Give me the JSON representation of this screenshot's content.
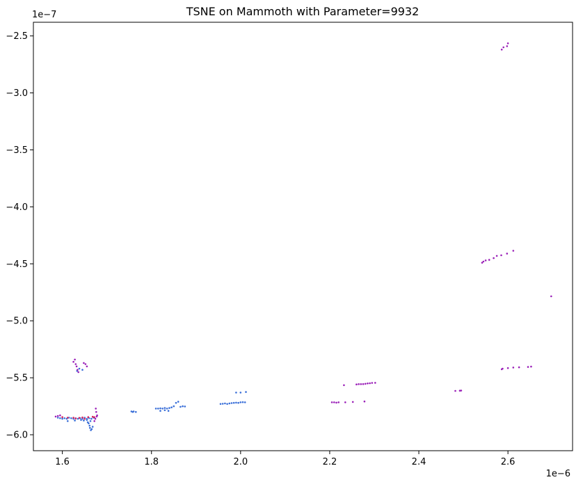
{
  "chart_data": {
    "type": "scatter",
    "title": "TSNE on Mammoth with Parameter=9932",
    "xlabel": "",
    "ylabel": "",
    "x_offset_label": "1e−6",
    "y_offset_label": "1e−7",
    "xlim": [
      1.535,
      2.745
    ],
    "ylim": [
      -6.14,
      -2.38
    ],
    "xticks": [
      1.6,
      1.8,
      2.0,
      2.2,
      2.4,
      2.6
    ],
    "xtick_labels": [
      "1.6",
      "1.8",
      "2.0",
      "2.2",
      "2.4",
      "2.6"
    ],
    "yticks": [
      -2.5,
      -3.0,
      -3.5,
      -4.0,
      -4.5,
      -5.0,
      -5.5,
      -6.0
    ],
    "ytick_labels": [
      "−2.5",
      "−3.0",
      "−3.5",
      "−4.0",
      "−4.5",
      "−5.0",
      "−5.5",
      "−6.0"
    ],
    "grid": false,
    "colors": {
      "blue": "#3a6fd8",
      "purple": "#9a1fb8",
      "red": "#d8205a"
    },
    "series": [
      {
        "color": "blue",
        "points": [
          [
            1.59,
            -5.85
          ],
          [
            1.595,
            -5.855
          ],
          [
            1.6,
            -5.86
          ],
          [
            1.605,
            -5.855
          ],
          [
            1.61,
            -5.86
          ],
          [
            1.615,
            -5.85
          ],
          [
            1.62,
            -5.855
          ],
          [
            1.625,
            -5.86
          ],
          [
            1.63,
            -5.855
          ],
          [
            1.635,
            -5.86
          ],
          [
            1.64,
            -5.855
          ],
          [
            1.645,
            -5.86
          ],
          [
            1.65,
            -5.85
          ],
          [
            1.655,
            -5.86
          ],
          [
            1.66,
            -5.855
          ],
          [
            1.665,
            -5.86
          ],
          [
            1.67,
            -5.85
          ],
          [
            1.612,
            -5.88
          ],
          [
            1.628,
            -5.875
          ],
          [
            1.642,
            -5.87
          ],
          [
            1.648,
            -5.875
          ],
          [
            1.655,
            -5.87
          ],
          [
            1.657,
            -5.89
          ],
          [
            1.659,
            -5.9
          ],
          [
            1.661,
            -5.92
          ],
          [
            1.662,
            -5.94
          ],
          [
            1.664,
            -5.96
          ],
          [
            1.666,
            -5.95
          ],
          [
            1.668,
            -5.93
          ],
          [
            1.663,
            -5.88
          ],
          [
            1.633,
            -5.44
          ],
          [
            1.645,
            -5.43
          ],
          [
            1.638,
            -5.42
          ],
          [
            1.755,
            -5.795
          ],
          [
            1.76,
            -5.795
          ],
          [
            1.765,
            -5.8
          ],
          [
            1.758,
            -5.8
          ],
          [
            1.81,
            -5.77
          ],
          [
            1.815,
            -5.77
          ],
          [
            1.82,
            -5.768
          ],
          [
            1.825,
            -5.77
          ],
          [
            1.83,
            -5.765
          ],
          [
            1.835,
            -5.77
          ],
          [
            1.84,
            -5.765
          ],
          [
            1.845,
            -5.76
          ],
          [
            1.82,
            -5.79
          ],
          [
            1.83,
            -5.785
          ],
          [
            1.838,
            -5.79
          ],
          [
            1.85,
            -5.75
          ],
          [
            1.855,
            -5.72
          ],
          [
            1.86,
            -5.71
          ],
          [
            1.865,
            -5.755
          ],
          [
            1.87,
            -5.75
          ],
          [
            1.875,
            -5.752
          ],
          [
            1.955,
            -5.73
          ],
          [
            1.96,
            -5.728
          ],
          [
            1.965,
            -5.725
          ],
          [
            1.97,
            -5.73
          ],
          [
            1.975,
            -5.725
          ],
          [
            1.98,
            -5.722
          ],
          [
            1.985,
            -5.72
          ],
          [
            1.99,
            -5.718
          ],
          [
            1.995,
            -5.72
          ],
          [
            2.0,
            -5.715
          ],
          [
            2.005,
            -5.714
          ],
          [
            2.01,
            -5.715
          ],
          [
            1.99,
            -5.63
          ],
          [
            2.0,
            -5.63
          ],
          [
            2.012,
            -5.625
          ]
        ]
      },
      {
        "color": "purple",
        "points": [
          [
            1.585,
            -5.84
          ],
          [
            1.59,
            -5.835
          ],
          [
            1.595,
            -5.83
          ],
          [
            1.675,
            -5.77
          ],
          [
            1.676,
            -5.8
          ],
          [
            1.678,
            -5.83
          ],
          [
            1.674,
            -5.86
          ],
          [
            1.672,
            -5.88
          ],
          [
            1.677,
            -5.84
          ],
          [
            1.625,
            -5.36
          ],
          [
            1.628,
            -5.34
          ],
          [
            1.63,
            -5.38
          ],
          [
            1.632,
            -5.4
          ],
          [
            1.634,
            -5.43
          ],
          [
            1.636,
            -5.45
          ],
          [
            1.648,
            -5.37
          ],
          [
            1.652,
            -5.38
          ],
          [
            1.655,
            -5.4
          ],
          [
            2.205,
            -5.715
          ],
          [
            2.21,
            -5.715
          ],
          [
            2.215,
            -5.718
          ],
          [
            2.22,
            -5.715
          ],
          [
            2.235,
            -5.715
          ],
          [
            2.252,
            -5.712
          ],
          [
            2.278,
            -5.708
          ],
          [
            2.232,
            -5.565
          ],
          [
            2.26,
            -5.558
          ],
          [
            2.265,
            -5.556
          ],
          [
            2.27,
            -5.556
          ],
          [
            2.275,
            -5.555
          ],
          [
            2.28,
            -5.553
          ],
          [
            2.285,
            -5.55
          ],
          [
            2.29,
            -5.548
          ],
          [
            2.295,
            -5.545
          ],
          [
            2.302,
            -5.544
          ],
          [
            2.482,
            -5.615
          ],
          [
            2.492,
            -5.613
          ],
          [
            2.495,
            -5.612
          ],
          [
            2.586,
            -5.425
          ],
          [
            2.588,
            -5.42
          ],
          [
            2.6,
            -5.415
          ],
          [
            2.612,
            -5.41
          ],
          [
            2.625,
            -5.408
          ],
          [
            2.645,
            -5.405
          ],
          [
            2.652,
            -5.402
          ],
          [
            2.542,
            -4.49
          ],
          [
            2.545,
            -4.48
          ],
          [
            2.55,
            -4.47
          ],
          [
            2.558,
            -4.465
          ],
          [
            2.568,
            -4.45
          ],
          [
            2.575,
            -4.43
          ],
          [
            2.585,
            -4.425
          ],
          [
            2.598,
            -4.41
          ],
          [
            2.612,
            -4.385
          ],
          [
            2.697,
            -4.785
          ],
          [
            2.586,
            -2.62
          ],
          [
            2.59,
            -2.6
          ],
          [
            2.598,
            -2.59
          ],
          [
            2.6,
            -2.565
          ]
        ]
      },
      {
        "color": "red",
        "points": [
          [
            1.6,
            -5.845
          ],
          [
            1.612,
            -5.85
          ],
          [
            1.625,
            -5.85
          ],
          [
            1.638,
            -5.852
          ],
          [
            1.645,
            -5.848
          ],
          [
            1.658,
            -5.845
          ],
          [
            1.668,
            -5.842
          ],
          [
            1.672,
            -5.846
          ],
          [
            1.63,
            -5.858
          ],
          [
            1.65,
            -5.86
          ]
        ]
      }
    ]
  }
}
